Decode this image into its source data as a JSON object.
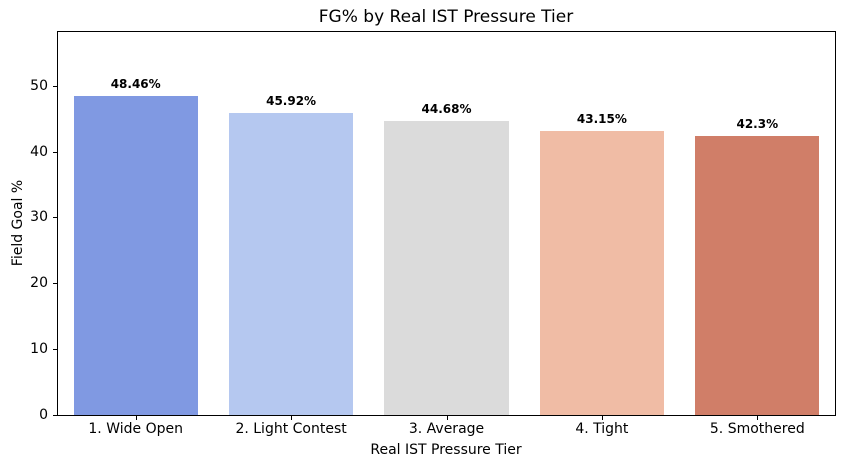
{
  "chart_data": {
    "type": "bar",
    "title": "FG% by Real IST Pressure Tier",
    "xlabel": "Real IST Pressure Tier",
    "ylabel": "Field Goal %",
    "categories": [
      "1. Wide Open",
      "2. Light Contest",
      "3. Average",
      "4. Tight",
      "5. Smothered"
    ],
    "values": [
      48.46,
      45.92,
      44.68,
      43.15,
      42.3
    ],
    "value_labels": [
      "48.46%",
      "45.92%",
      "44.68%",
      "43.15%",
      "42.3%"
    ],
    "bar_colors": [
      "#8099E2",
      "#B5C8F0",
      "#DBDBDB",
      "#F0BCA5",
      "#D07E68"
    ],
    "y_ticks": [
      0,
      10,
      20,
      30,
      40,
      50
    ],
    "ylim": [
      0,
      58.15
    ],
    "bar_width_fraction": 0.8,
    "grid": false,
    "legend_position": "none",
    "background_color": "#ffffff",
    "spine_color": "#000000"
  }
}
